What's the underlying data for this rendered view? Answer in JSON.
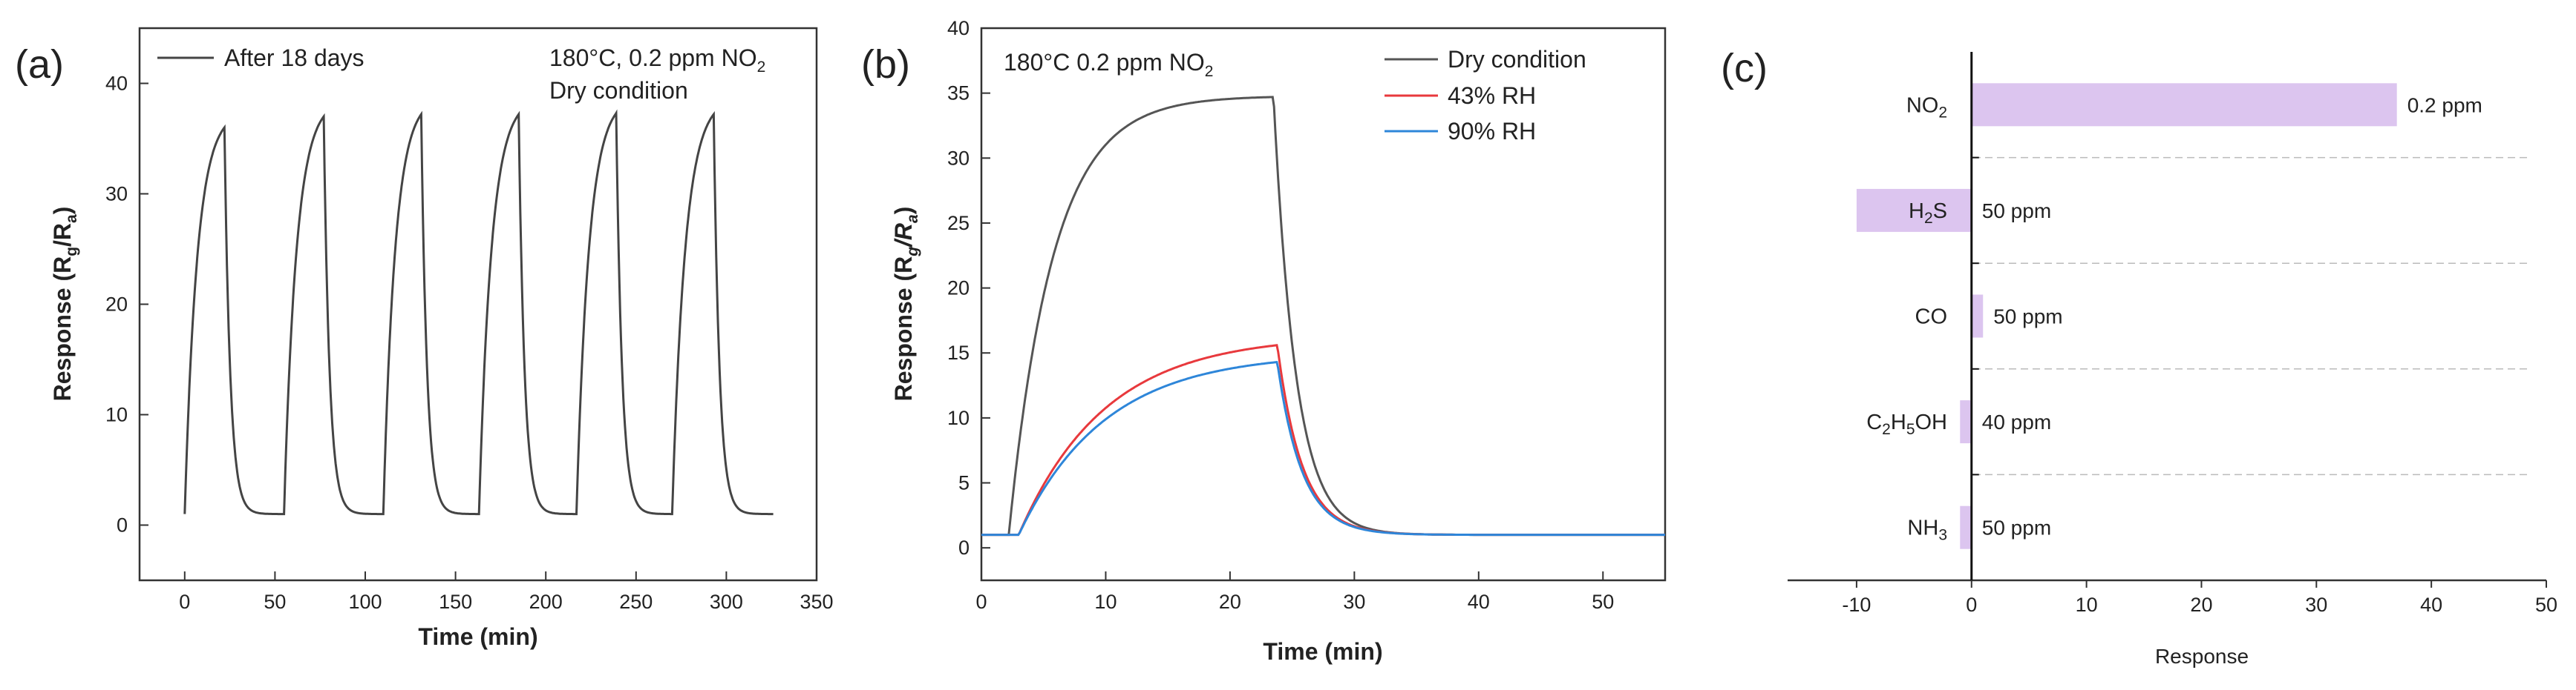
{
  "chart_data": [
    {
      "panel": "(a)",
      "type": "line",
      "xlabel": "Time (min)",
      "ylabel": {
        "prefix": "Response (R",
        "sub1": "g",
        "mid": "/R",
        "sub2": "a",
        "suffix": ")"
      },
      "xlim": [
        -25,
        350
      ],
      "ylim": [
        -5,
        45
      ],
      "xticks": [
        0,
        50,
        100,
        150,
        200,
        250,
        300,
        350
      ],
      "yticks": [
        0,
        10,
        20,
        30,
        40
      ],
      "legend": "After 18 days",
      "annotation": {
        "line1": "180°C, 0.2 ppm NO",
        "line1_sub": "2",
        "line2": "Dry condition"
      },
      "series": [
        {
          "name": "After 18 days",
          "color": "#444444",
          "cycles": [
            {
              "start": 0,
              "on_end": 22,
              "off_end": 55,
              "base": 1.0,
              "peak": 36.0
            },
            {
              "start": 55,
              "on_end": 77,
              "off_end": 110,
              "base": 1.0,
              "peak": 37.0
            },
            {
              "start": 110,
              "on_end": 131,
              "off_end": 163,
              "base": 1.0,
              "peak": 37.2
            },
            {
              "start": 163,
              "on_end": 185,
              "off_end": 217,
              "base": 1.0,
              "peak": 37.2
            },
            {
              "start": 217,
              "on_end": 239,
              "off_end": 270,
              "base": 1.0,
              "peak": 37.3
            },
            {
              "start": 270,
              "on_end": 293,
              "off_end": 326,
              "base": 1.0,
              "peak": 37.2
            }
          ]
        }
      ]
    },
    {
      "panel": "(b)",
      "type": "line",
      "xlabel": "Time (min)",
      "ylabel": {
        "prefix": "Response (R",
        "sub1": "g",
        "mid": "/R",
        "sub2": "a",
        "suffix": ")"
      },
      "xlim": [
        0,
        55
      ],
      "ylim": [
        -2.5,
        40
      ],
      "xticks": [
        0,
        10,
        20,
        30,
        40,
        50
      ],
      "yticks": [
        0,
        5,
        10,
        15,
        20,
        25,
        30,
        35,
        40
      ],
      "annotation": {
        "text": "180°C 0.2 ppm NO",
        "sub": "2"
      },
      "series": [
        {
          "name": "Dry condition",
          "color": "#555555",
          "base": 1.0,
          "onset": 2.2,
          "peak_t": 23.5,
          "peak": 34.7,
          "k_rise": 6.0,
          "k_fall": 1.8
        },
        {
          "name": "43% RH",
          "color": "#e8393d",
          "base": 1.0,
          "onset": 3.0,
          "peak_t": 23.8,
          "peak": 15.6,
          "k_rise": 3.0,
          "k_fall": 2.0
        },
        {
          "name": "90% RH",
          "color": "#2e86d9",
          "base": 1.0,
          "onset": 3.0,
          "peak_t": 23.8,
          "peak": 14.3,
          "k_rise": 3.0,
          "k_fall": 2.0
        }
      ]
    },
    {
      "panel": "(c)",
      "type": "bar",
      "orientation": "horizontal",
      "xlabel": "Response",
      "xlim": [
        -16,
        50
      ],
      "xticks": [
        -10,
        0,
        10,
        20,
        30,
        40,
        50
      ],
      "bar_color": "#dcc5ef",
      "categories": [
        {
          "label": "NO",
          "sub": "2",
          "tail": "",
          "value": 37,
          "bar_label": "0.2 ppm"
        },
        {
          "label": "H",
          "sub": "2",
          "tail": "S",
          "value": -10,
          "bar_label": "50 ppm"
        },
        {
          "label": "CO",
          "sub": "",
          "tail": "",
          "value": 1,
          "bar_label": "50 ppm"
        },
        {
          "label": "C",
          "sub": "2",
          "tail": "H",
          "sub2": "5",
          "tail2": "OH",
          "value": -1,
          "bar_label": "40 ppm"
        },
        {
          "label": "NH",
          "sub": "3",
          "tail": "",
          "value": -1,
          "bar_label": "50 ppm"
        }
      ]
    }
  ]
}
